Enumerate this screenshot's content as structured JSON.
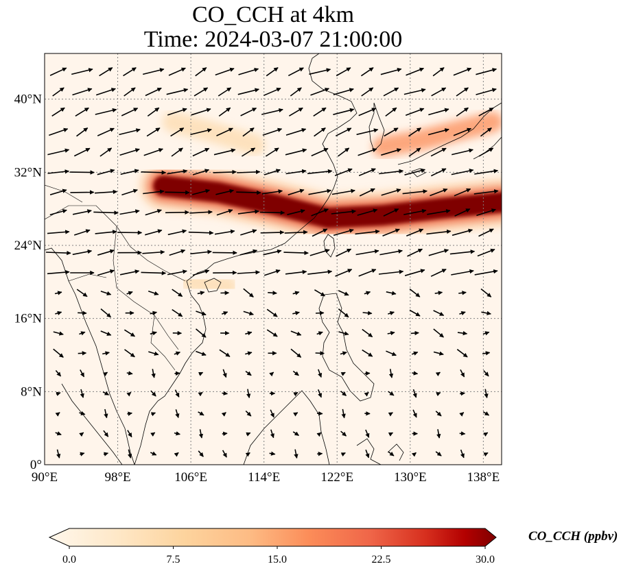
{
  "title": "CO_CCH at 4km",
  "subtitle": "Time: 2024-03-07 21:00:00",
  "chart_data": {
    "type": "heatmap",
    "variable": "CO_CCH",
    "level": "4km",
    "time": "2024-03-07 21:00:00",
    "lon_range": [
      90,
      140
    ],
    "lat_range": [
      0,
      45
    ],
    "x_ticks": [
      90,
      98,
      106,
      114,
      122,
      130,
      138
    ],
    "x_tick_labels": [
      "90°E",
      "98°E",
      "106°E",
      "114°E",
      "122°E",
      "130°E",
      "138°E"
    ],
    "y_ticks": [
      0,
      8,
      16,
      24,
      32,
      40
    ],
    "y_tick_labels": [
      "0°",
      "8°N",
      "16°N",
      "24°N",
      "32°N",
      "40°N"
    ],
    "grid": true,
    "colorbar": {
      "label": "CO_CCH (ppbv)",
      "min": 0,
      "max": 30,
      "ticks": [
        0,
        7.5,
        15,
        22.5,
        30
      ],
      "tick_labels": [
        "0.0",
        "7.5",
        "15.0",
        "22.5",
        "30.0"
      ],
      "colormap": "OrRd",
      "extend": "both"
    },
    "plumes": [
      {
        "lon": [
          103,
          109,
          115,
          121,
          127,
          133,
          140
        ],
        "lat": [
          30.5,
          29.8,
          28.5,
          27.0,
          27.3,
          28.0,
          28.7
        ],
        "value": 30
      },
      {
        "lon": [
          127,
          131,
          135,
          139
        ],
        "lat": [
          34.8,
          35.5,
          36.5,
          37.5
        ],
        "value": 10
      },
      {
        "lon": [
          104,
          108,
          113
        ],
        "lat": [
          37.5,
          36.5,
          35.0
        ],
        "value": 4
      },
      {
        "lon": [
          106,
          110
        ],
        "lat": [
          20.0,
          19.5
        ],
        "value": 4
      }
    ],
    "vectors": "wind field (predominantly westerly north of 20°N, weaker and variable to the south)"
  },
  "colors": {
    "background": "#fff5eb",
    "low": "#fff7ec",
    "high": "#7f0000",
    "coast": "#000000",
    "grid": "#808080"
  }
}
